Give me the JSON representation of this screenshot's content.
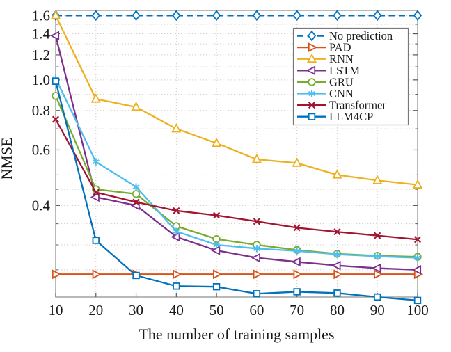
{
  "chart_data": {
    "type": "line",
    "xlabel": "The number of training samples",
    "ylabel": "NMSE",
    "x": [
      10,
      20,
      30,
      40,
      50,
      60,
      70,
      80,
      90,
      100
    ],
    "x_tick_labels": [
      "10",
      "20",
      "30",
      "40",
      "50",
      "60",
      "70",
      "80",
      "90",
      "100"
    ],
    "y_tick_values": [
      1.6,
      1.4,
      1.2,
      1.0,
      0.8,
      0.6,
      0.4
    ],
    "y_tick_labels": [
      "1.6",
      "1.4",
      "1.2",
      "1.0",
      "0.8",
      "0.6",
      "0.4"
    ],
    "y_minor_ticks": [
      1.5,
      1.3,
      1.1,
      0.9,
      0.7,
      0.5,
      0.45,
      0.35,
      0.3,
      0.25
    ],
    "y_scale": "log",
    "xlim": [
      10,
      100
    ],
    "ylim": [
      0.205,
      1.66
    ],
    "grid": {
      "style": "dotted",
      "major": true,
      "minor": true
    },
    "legend": {
      "location": "upper-right-inside"
    },
    "series": [
      {
        "name": "No prediction",
        "color": "#0072BD",
        "line_style": "dashed",
        "marker": "diamond",
        "values": [
          1.6,
          1.6,
          1.6,
          1.6,
          1.6,
          1.6,
          1.6,
          1.6,
          1.6,
          1.6
        ]
      },
      {
        "name": "PAD",
        "color": "#D95319",
        "line_style": "solid",
        "marker": "triangle-right",
        "values": [
          0.242,
          0.242,
          0.242,
          0.242,
          0.242,
          0.242,
          0.242,
          0.242,
          0.242,
          0.242
        ]
      },
      {
        "name": "RNN",
        "color": "#EDB120",
        "line_style": "solid",
        "marker": "triangle-up",
        "values": [
          1.6,
          0.87,
          0.82,
          0.7,
          0.63,
          0.56,
          0.545,
          0.5,
          0.48,
          0.465
        ]
      },
      {
        "name": "LSTM",
        "color": "#7E2F8E",
        "line_style": "solid",
        "marker": "triangle-left",
        "values": [
          1.38,
          0.425,
          0.4,
          0.318,
          0.288,
          0.273,
          0.265,
          0.258,
          0.253,
          0.25
        ]
      },
      {
        "name": "GRU",
        "color": "#77AC30",
        "line_style": "solid",
        "marker": "circle",
        "values": [
          0.89,
          0.45,
          0.435,
          0.344,
          0.313,
          0.3,
          0.289,
          0.281,
          0.277,
          0.275
        ]
      },
      {
        "name": "CNN",
        "color": "#4DBEEE",
        "line_style": "solid",
        "marker": "asterisk",
        "values": [
          1.01,
          0.55,
          0.458,
          0.331,
          0.3,
          0.292,
          0.287,
          0.28,
          0.276,
          0.273
        ]
      },
      {
        "name": "Transformer",
        "color": "#A2142F",
        "line_style": "solid",
        "marker": "x",
        "values": [
          0.75,
          0.44,
          0.41,
          0.385,
          0.372,
          0.356,
          0.34,
          0.33,
          0.321,
          0.312
        ]
      },
      {
        "name": "LLM4CP",
        "color": "#0072BD",
        "line_style": "solid",
        "marker": "square",
        "values": [
          0.99,
          0.31,
          0.24,
          0.222,
          0.221,
          0.21,
          0.213,
          0.211,
          0.205,
          0.2
        ]
      }
    ]
  },
  "style": {
    "background": "#ffffff",
    "grid_color": "#d9c8c8",
    "axis_color": "#8a8a8a",
    "tick_color": "#595959",
    "text_color": "#1a1a1a",
    "legend_border": "#777777",
    "legend_background": "#ffffff"
  }
}
